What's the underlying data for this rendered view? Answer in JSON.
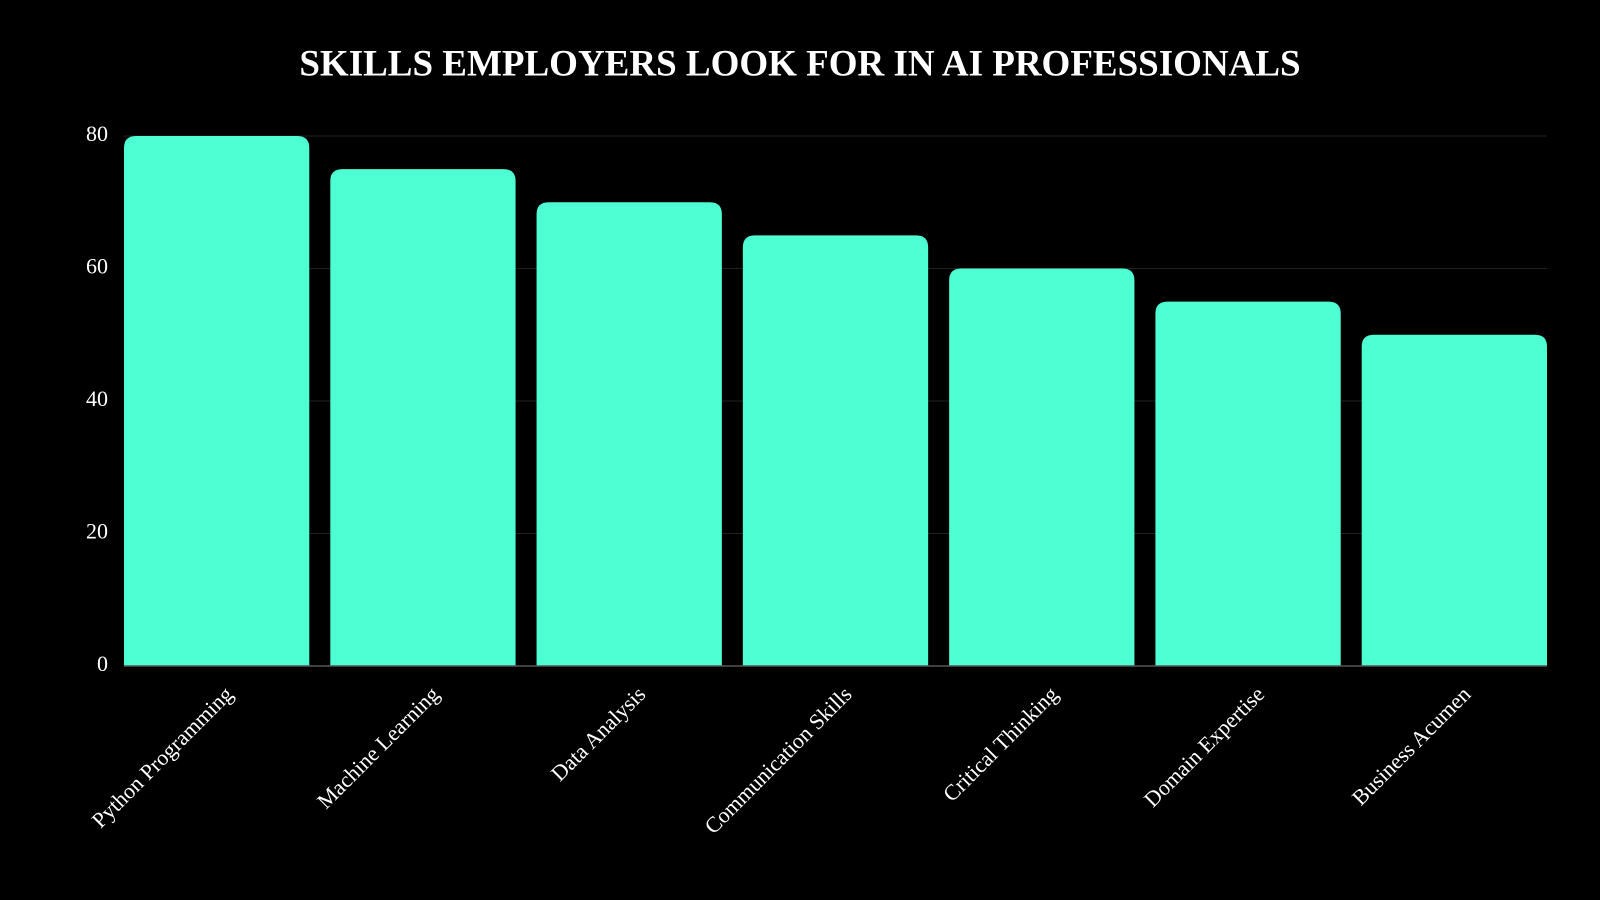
{
  "chart_data": {
    "type": "bar",
    "title": "SKILLS EMPLOYERS LOOK FOR IN AI PROFESSIONALS",
    "categories": [
      "Python Programming",
      "Machine Learning",
      "Data Analysis",
      "Communication Skills",
      "Critical Thinking",
      "Domain Expertise",
      "Business Acumen"
    ],
    "values": [
      80,
      75,
      70,
      65,
      60,
      55,
      50
    ],
    "color": "#4dffd2",
    "ylim": [
      0,
      80
    ],
    "yticks": [
      0,
      20,
      40,
      60,
      80
    ],
    "grid": true
  }
}
